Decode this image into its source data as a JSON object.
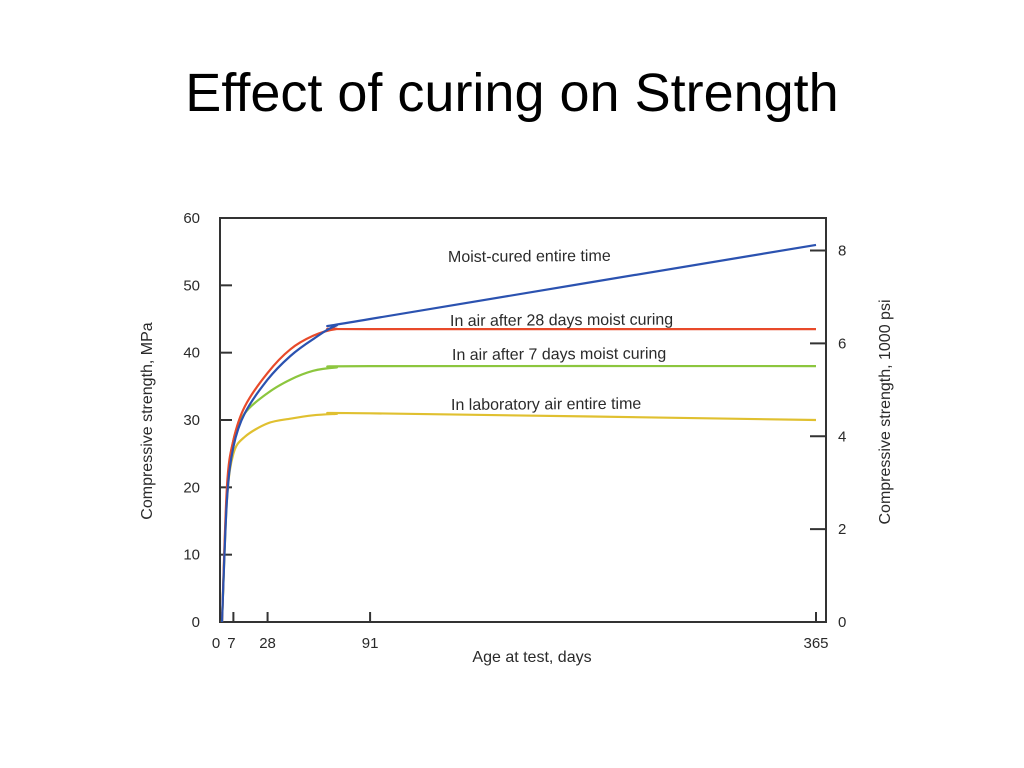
{
  "page": {
    "title": "Effect of curing on Strength"
  },
  "chart_data": {
    "type": "line",
    "title": "",
    "xlabel": "Age at test, days",
    "ylabel": "Compressive strength, MPa",
    "y2label": "Compressive strength, 1000 psi",
    "xlim": [
      0,
      365
    ],
    "ylim": [
      0,
      60
    ],
    "y2lim": [
      0,
      8.7
    ],
    "x_ticks": [
      0,
      7,
      28,
      91,
      365
    ],
    "x_tick_labels": [
      "0",
      "7",
      "28",
      "91",
      "365"
    ],
    "y_ticks": [
      0,
      10,
      20,
      30,
      40,
      50,
      60
    ],
    "y_tick_labels": [
      "0",
      "10",
      "20",
      "30",
      "40",
      "50",
      "60"
    ],
    "y2_ticks": [
      0,
      2,
      4,
      6,
      8
    ],
    "y2_tick_labels": [
      "0",
      "2",
      "4",
      "6",
      "8"
    ],
    "grid": false,
    "legend": "none",
    "series": [
      {
        "name": "Moist-cured entire time",
        "color": "#2b52b0",
        "x": [
          0,
          3,
          7,
          14,
          28,
          42,
          56,
          70,
          91,
          365
        ],
        "y": [
          0,
          18,
          26,
          31,
          36,
          39.5,
          42,
          44,
          45,
          56
        ]
      },
      {
        "name": "In air after 28 days moist curing",
        "color": "#e84a2a",
        "x": [
          0,
          3,
          7,
          14,
          28,
          42,
          56,
          70,
          91,
          365
        ],
        "y": [
          0,
          20,
          27,
          32,
          37,
          40.5,
          42.5,
          43.5,
          43.5,
          43.5
        ]
      },
      {
        "name": "In air after 7 days moist curing",
        "color": "#8cc63e",
        "x": [
          0,
          3,
          7,
          14,
          28,
          42,
          56,
          70,
          91,
          365
        ],
        "y": [
          0,
          19,
          27,
          31,
          34,
          36,
          37.3,
          37.8,
          38,
          38
        ]
      },
      {
        "name": "In laboratory air entire time",
        "color": "#e0c030",
        "x": [
          0,
          3,
          7,
          14,
          28,
          42,
          56,
          70,
          91,
          365
        ],
        "y": [
          0,
          18,
          25,
          27.5,
          29.5,
          30.2,
          30.7,
          30.9,
          31,
          30
        ]
      }
    ],
    "annotations": [
      "Moist-cured entire time",
      "In air after 28 days moist curing",
      "In air after 7 days moist curing",
      "In laboratory air entire time"
    ]
  }
}
